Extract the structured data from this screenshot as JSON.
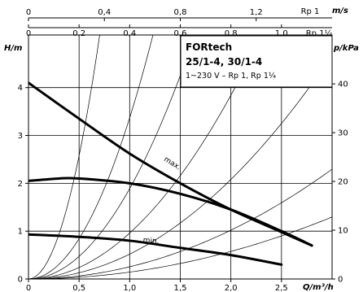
{
  "chart_data": {
    "type": "line",
    "title": "FORtech",
    "subtitle": "25/1-4, 30/1-4",
    "note": "1~230 V – Rp 1, Rp 1¼",
    "xlabel": "Q/m³/h",
    "ylabel_left": "H/m",
    "ylabel_right": "p/kPa",
    "top_axis_label": "m/s",
    "top_axis_rp1_name": "Rp 1",
    "top_axis_rp114_name": "Rp 1¼",
    "xlim": [
      0,
      3.0
    ],
    "ylim": [
      0,
      5.1
    ],
    "x_ticks": [
      "0",
      "0,5",
      "1,0",
      "1,5",
      "2,0",
      "2,5"
    ],
    "y_ticks_left": [
      "0",
      "1",
      "2",
      "3",
      "4"
    ],
    "y_ticks_right": [
      "0",
      "10",
      "20",
      "30",
      "40"
    ],
    "top_ticks_rp1": [
      "0",
      "0,4",
      "0,8",
      "1,2"
    ],
    "top_ticks_rp114": [
      "0",
      "0,2",
      "0,4",
      "0,6",
      "0,8",
      "1,0"
    ],
    "grid": true,
    "series": [
      {
        "name": "max.",
        "x": [
          0,
          0.5,
          1.0,
          1.5,
          2.0,
          2.5,
          2.8
        ],
        "y": [
          4.1,
          3.35,
          2.62,
          2.0,
          1.45,
          0.98,
          0.7
        ]
      },
      {
        "name": "",
        "x": [
          0,
          0.3,
          0.5,
          1.0,
          1.5,
          2.0,
          2.5,
          2.8
        ],
        "y": [
          2.05,
          2.1,
          2.1,
          2.0,
          1.78,
          1.45,
          1.0,
          0.7
        ]
      },
      {
        "name": "min.",
        "x": [
          0,
          0.5,
          1.0,
          1.5,
          2.0,
          2.5
        ],
        "y": [
          0.93,
          0.88,
          0.8,
          0.65,
          0.5,
          0.3
        ]
      }
    ],
    "system_curves": [
      {
        "k": 10.3
      },
      {
        "k": 3.37
      },
      {
        "k": 1.89
      },
      {
        "k": 0.96
      },
      {
        "k": 0.52
      },
      {
        "k": 0.255
      },
      {
        "k": 0.144
      }
    ]
  }
}
